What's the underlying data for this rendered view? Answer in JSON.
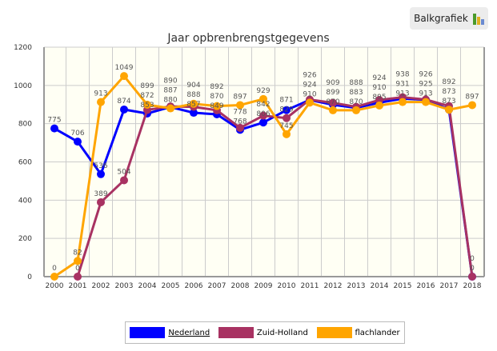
{
  "button": {
    "label": "Balkgrafiek",
    "icon": "bar-chart-icon"
  },
  "chart_data": {
    "type": "line",
    "title": "Jaar opbrenbrengstgegevens",
    "x": [
      "2000",
      "2001",
      "2002",
      "2003",
      "2004",
      "2005",
      "2006",
      "2007",
      "2008",
      "2009",
      "2010",
      "2011",
      "2012",
      "2013",
      "2014",
      "2015",
      "2016",
      "2017",
      "2018"
    ],
    "ylim": [
      0,
      1200
    ],
    "yticks": [
      0,
      200,
      400,
      600,
      800,
      1000,
      1200
    ],
    "grid": true,
    "legend_position": "bottom",
    "series": [
      {
        "name": "Nederland",
        "color": "#0000ff",
        "values": [
          775,
          706,
          536,
          874,
          853,
          887,
          857,
          849,
          768,
          806,
          871,
          924,
          899,
          883,
          910,
          931,
          925,
          873,
          0
        ]
      },
      {
        "name": "Zuid-Holland",
        "color": "#a83262",
        "values": [
          null,
          0,
          389,
          504,
          872,
          890,
          888,
          870,
          778,
          842,
          829,
          926,
          909,
          888,
          924,
          938,
          926,
          892,
          0
        ]
      },
      {
        "name": "flachlander",
        "color": "#ffa500",
        "values": [
          0,
          82,
          913,
          1049,
          899,
          880,
          904,
          892,
          897,
          929,
          745,
          910,
          870,
          870,
          895,
          913,
          913,
          873,
          897
        ]
      }
    ]
  }
}
